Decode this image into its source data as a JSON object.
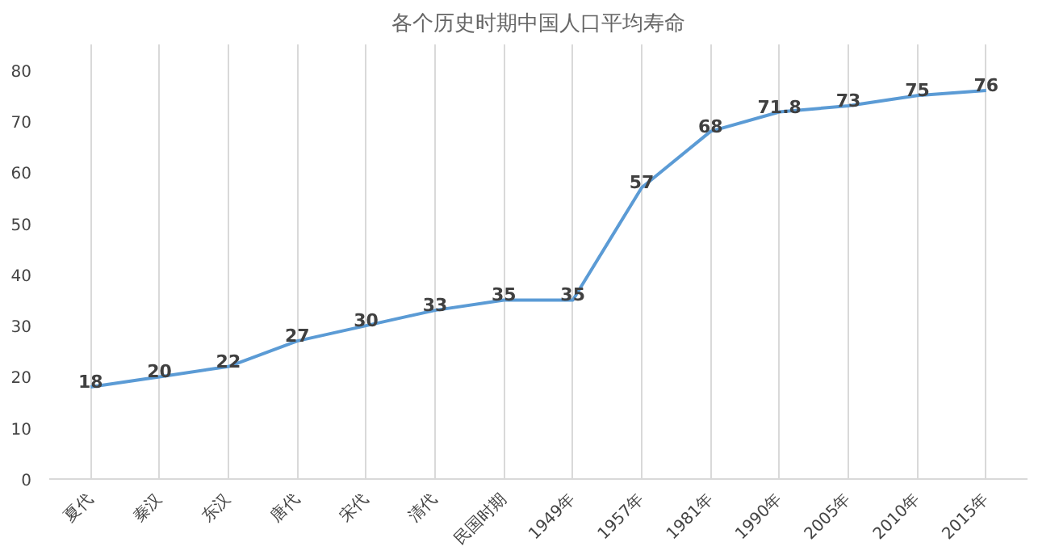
{
  "chart_data": {
    "type": "line",
    "title": "各个历史时期中国人口平均寿命",
    "categories": [
      "夏代",
      "秦汉",
      "东汉",
      "唐代",
      "宋代",
      "清代",
      "民国时期",
      "1949年",
      "1957年",
      "1981年",
      "1990年",
      "2005年",
      "2010年",
      "2015年"
    ],
    "series": [
      {
        "color": "#5b9bd5",
        "values": [
          18,
          20,
          22,
          27,
          30,
          33,
          35,
          35,
          57,
          68,
          71.8,
          73,
          75,
          76
        ]
      }
    ],
    "ylim": [
      0,
      85
    ],
    "yticks": [
      0,
      10,
      20,
      30,
      40,
      50,
      60,
      70,
      80
    ],
    "grid": "x",
    "data_labels": true,
    "marker": "none",
    "line_style": "solid"
  }
}
